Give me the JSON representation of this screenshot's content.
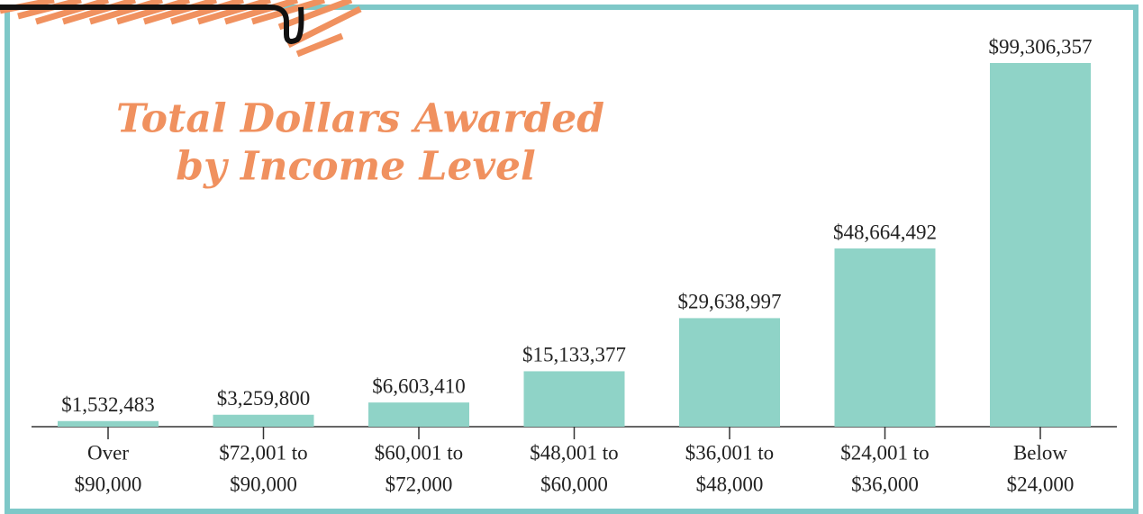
{
  "chart_data": {
    "type": "bar",
    "title": [
      "Total Dollars Awarded",
      "by Income Level"
    ],
    "categories": [
      [
        "Over",
        "$90,000"
      ],
      [
        "$72,001 to",
        "$90,000"
      ],
      [
        "$60,001 to",
        "$72,000"
      ],
      [
        "$48,001 to",
        "$60,000"
      ],
      [
        "$36,001 to",
        "$48,000"
      ],
      [
        "$24,001 to",
        "$36,000"
      ],
      [
        "Below",
        "$24,000"
      ]
    ],
    "values": [
      1532483,
      3259800,
      6603410,
      15133377,
      29638997,
      48664492,
      99306357
    ],
    "value_labels": [
      "$1,532,483",
      "$3,259,800",
      "$6,603,410",
      "$15,133,377",
      "$29,638,997",
      "$48,664,492",
      "$99,306,357"
    ],
    "color": "#8fd3c7"
  }
}
